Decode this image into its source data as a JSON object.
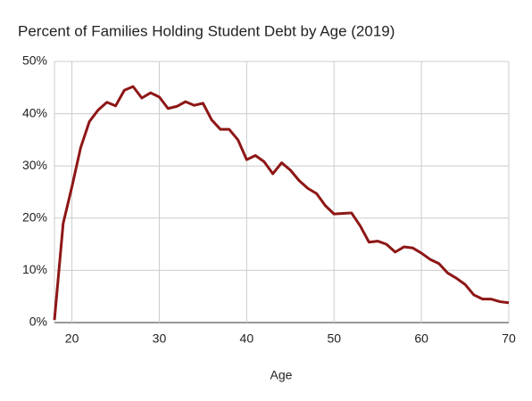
{
  "chart_data": {
    "type": "line",
    "title": "Percent of Families Holding Student Debt by Age (2019)",
    "x_label": "Age",
    "x": [
      18,
      19,
      20,
      21,
      22,
      23,
      24,
      25,
      26,
      27,
      28,
      29,
      30,
      31,
      32,
      33,
      34,
      35,
      36,
      37,
      38,
      39,
      40,
      41,
      42,
      43,
      44,
      45,
      46,
      47,
      48,
      49,
      50,
      51,
      52,
      53,
      54,
      55,
      56,
      57,
      58,
      59,
      60,
      61,
      62,
      63,
      64,
      65,
      66,
      67,
      68,
      69,
      70
    ],
    "series": [
      {
        "name": "Percent of Families Holding Student Debt",
        "color": "#8e1616",
        "values": [
          0.5,
          19,
          26,
          33.5,
          38.5,
          40.7,
          42.2,
          41.5,
          44.5,
          45.2,
          43,
          44,
          43.2,
          41,
          41.4,
          42.3,
          41.6,
          42,
          38.8,
          37,
          37,
          35,
          31.2,
          32,
          30.8,
          28.5,
          30.6,
          29.2,
          27.2,
          25.7,
          24.7,
          22.4,
          20.8,
          20.9,
          21,
          18.5,
          15.4,
          15.6,
          15,
          13.5,
          14.5,
          14.3,
          13.3,
          12.1,
          11.3,
          9.5,
          8.5,
          7.3,
          5.3,
          4.5,
          4.5,
          4,
          3.8
        ]
      }
    ],
    "xlim": [
      18,
      70
    ],
    "xticks": [
      20,
      30,
      40,
      50,
      60,
      70
    ],
    "ylim": [
      0,
      50
    ],
    "yticks": [
      {
        "value": 0,
        "label": "0%"
      },
      {
        "value": 10,
        "label": "10%"
      },
      {
        "value": 20,
        "label": "20%"
      },
      {
        "value": 30,
        "label": "30%"
      },
      {
        "value": 40,
        "label": "40%"
      },
      {
        "value": 50,
        "label": "50%"
      }
    ],
    "grid": true
  }
}
